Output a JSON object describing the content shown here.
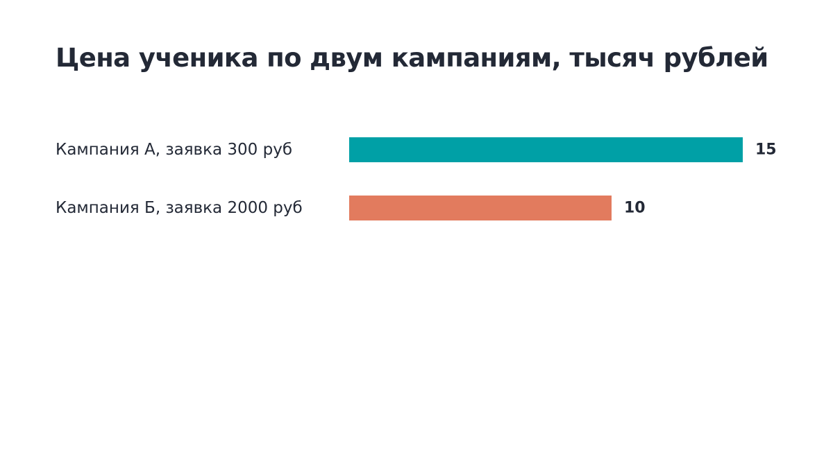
{
  "chart_data": {
    "type": "bar",
    "orientation": "horizontal",
    "title": "Цена ученика по двум кампаниям, тысяч рублей",
    "categories": [
      "Кампания А, заявка 300 руб",
      "Кампания Б, заявка 2000 руб"
    ],
    "values": [
      15,
      10
    ],
    "value_labels": [
      "15",
      "10"
    ],
    "colors": [
      "#00a0a6",
      "#e27b5e"
    ],
    "xlabel": "",
    "ylabel": "",
    "xlim": [
      0,
      15
    ],
    "grid": false,
    "legend": "none"
  }
}
